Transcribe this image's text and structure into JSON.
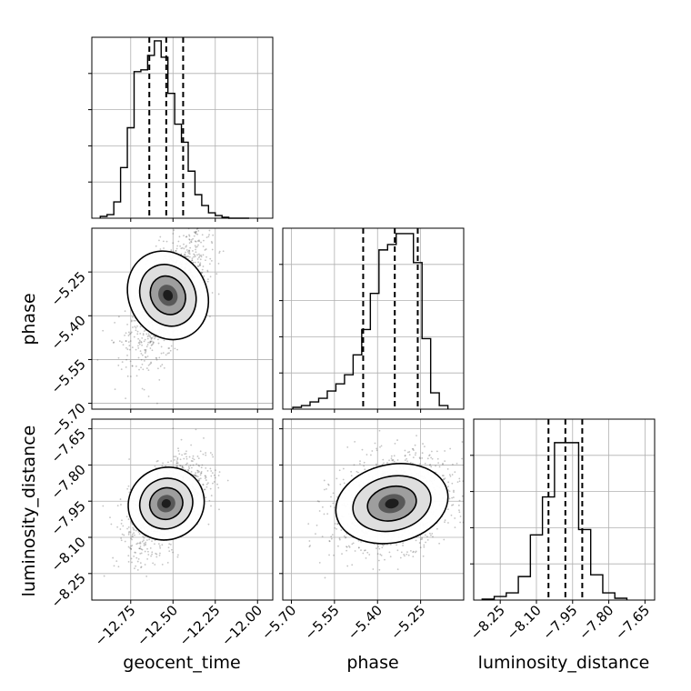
{
  "chart_data": [
    {
      "type": "histogram",
      "panel": "geocent_time-marginal",
      "x": [
        -12.91,
        -12.87,
        -12.83,
        -12.79,
        -12.75,
        -12.71,
        -12.67,
        -12.63,
        -12.59,
        -12.55,
        -12.51,
        -12.47,
        -12.43,
        -12.39,
        -12.35,
        -12.31,
        -12.27,
        -12.23,
        -12.19,
        -12.15,
        -12.11,
        -12.07
      ],
      "counts": [
        0.01,
        0.02,
        0.09,
        0.28,
        0.5,
        0.81,
        0.82,
        0.9,
        0.98,
        0.89,
        0.69,
        0.52,
        0.42,
        0.26,
        0.13,
        0.07,
        0.03,
        0.015,
        0.005,
        0,
        0,
        0
      ],
      "quantiles": [
        -12.64,
        -12.54,
        -12.44
      ],
      "xlim": [
        -12.98,
        -11.91
      ],
      "xticks": [
        -12.75,
        -12.5,
        -12.25,
        -12.0
      ]
    },
    {
      "type": "scatter-density",
      "panel": "geocent_time-vs-phase",
      "xlabel": "",
      "ylabel": "phase",
      "x_center": -12.53,
      "y_center": -5.33,
      "x_std": 0.085,
      "y_std": 0.08,
      "correlation": 0.6,
      "xlim": [
        -12.98,
        -11.91
      ],
      "ylim": [
        -5.72,
        -5.1
      ],
      "yticks": [
        -5.25,
        -5.4,
        -5.55,
        -5.7
      ],
      "contour_levels": [
        "39%",
        "86%",
        "99%"
      ]
    },
    {
      "type": "histogram",
      "panel": "phase-marginal",
      "x": [
        -5.68,
        -5.65,
        -5.62,
        -5.59,
        -5.56,
        -5.53,
        -5.5,
        -5.47,
        -5.44,
        -5.41,
        -5.38,
        -5.35,
        -5.32,
        -5.29,
        -5.26,
        -5.23,
        -5.2,
        -5.17
      ],
      "counts": [
        0.01,
        0.02,
        0.04,
        0.06,
        0.1,
        0.14,
        0.19,
        0.3,
        0.44,
        0.64,
        0.88,
        0.91,
        0.97,
        0.97,
        0.81,
        0.39,
        0.09,
        0.02
      ],
      "quantiles": [
        -5.45,
        -5.34,
        -5.26
      ],
      "xlim": [
        -5.73,
        -5.1
      ],
      "xticks": [
        -5.7,
        -5.55,
        -5.4,
        -5.25
      ]
    },
    {
      "type": "scatter-density",
      "panel": "geocent_time-vs-luminosity_distance",
      "xlabel": "geocent_time",
      "ylabel": "luminosity_distance",
      "x_center": -12.54,
      "y_center": -7.96,
      "x_std": 0.085,
      "y_std": 0.075,
      "correlation": 0.55,
      "xlim": [
        -12.98,
        -11.91
      ],
      "ylim": [
        -8.36,
        -7.61
      ],
      "xticks": [
        -12.75,
        -12.5,
        -12.25,
        -12.0
      ],
      "yticks": [
        -7.65,
        -7.8,
        -7.95,
        -8.1,
        -8.25
      ],
      "contour_levels": [
        "39%",
        "86%",
        "99%"
      ]
    },
    {
      "type": "scatter-density",
      "panel": "phase-vs-luminosity_distance",
      "xlabel": "phase",
      "ylabel": "",
      "x_center": -5.35,
      "y_center": -7.96,
      "x_std": 0.08,
      "y_std": 0.075,
      "correlation": 0.25,
      "xlim": [
        -5.73,
        -5.1
      ],
      "ylim": [
        -8.36,
        -7.61
      ],
      "xticks": [
        -5.7,
        -5.55,
        -5.4,
        -5.25
      ],
      "contour_levels": [
        "39%",
        "86%",
        "99%"
      ]
    },
    {
      "type": "histogram",
      "panel": "luminosity_distance-marginal",
      "xlabel": "luminosity_distance",
      "x": [
        -8.3,
        -8.25,
        -8.2,
        -8.15,
        -8.1,
        -8.05,
        -8.0,
        -7.95,
        -7.9,
        -7.85,
        -7.8,
        -7.75
      ],
      "counts": [
        0.005,
        0.02,
        0.04,
        0.13,
        0.36,
        0.57,
        0.87,
        0.87,
        0.39,
        0.14,
        0.04,
        0.01
      ],
      "quantiles": [
        -8.05,
        -7.98,
        -7.91
      ],
      "xlim": [
        -8.36,
        -7.61
      ],
      "xticks": [
        -8.25,
        -8.1,
        -7.95,
        -7.8,
        -7.65
      ]
    }
  ],
  "labels": {
    "geocent_time": "geocent_time",
    "phase": "phase",
    "luminosity_distance": "luminosity_distance"
  },
  "colors": {
    "line": "#000000",
    "grid": "#b0b0b0",
    "points": "#555555"
  }
}
